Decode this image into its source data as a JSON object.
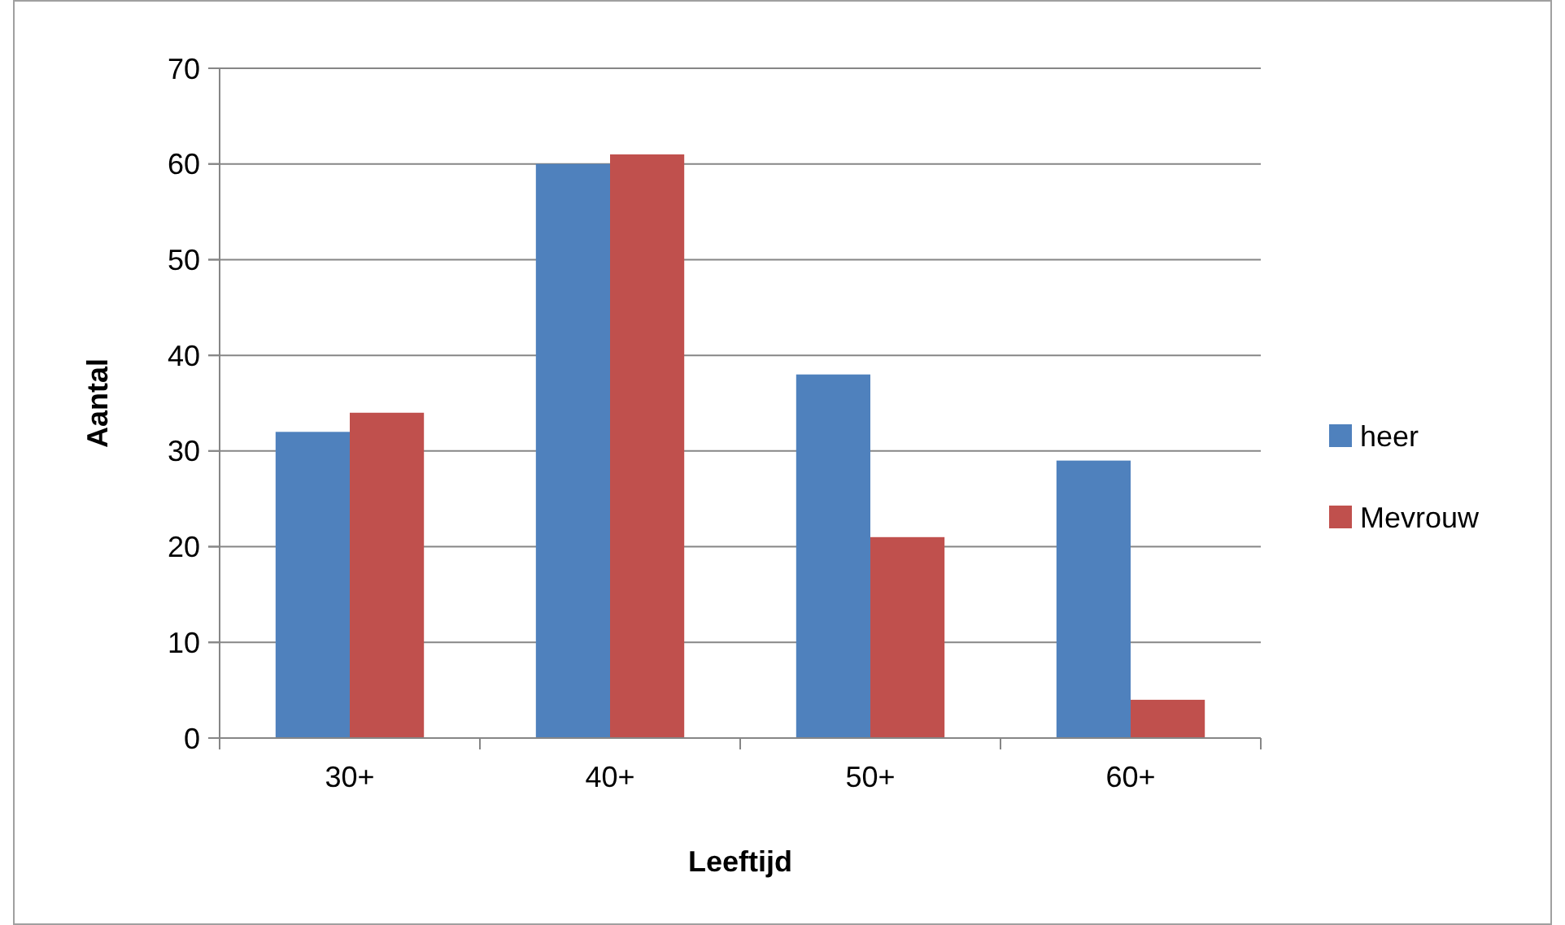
{
  "chart_data": {
    "type": "bar",
    "xlabel": "Leeftijd",
    "ylabel": "Aantal",
    "categories": [
      "30+",
      "40+",
      "50+",
      "60+"
    ],
    "series": [
      {
        "name": "heer",
        "color": "#4f81bd",
        "values": [
          32,
          60,
          38,
          29
        ]
      },
      {
        "name": "Mevrouw",
        "color": "#c0504d",
        "values": [
          34,
          61,
          21,
          4
        ]
      }
    ],
    "ylim": [
      0,
      70
    ],
    "yticks": [
      0,
      10,
      20,
      30,
      40,
      50,
      60,
      70
    ],
    "grid": "y",
    "legend": "right"
  }
}
